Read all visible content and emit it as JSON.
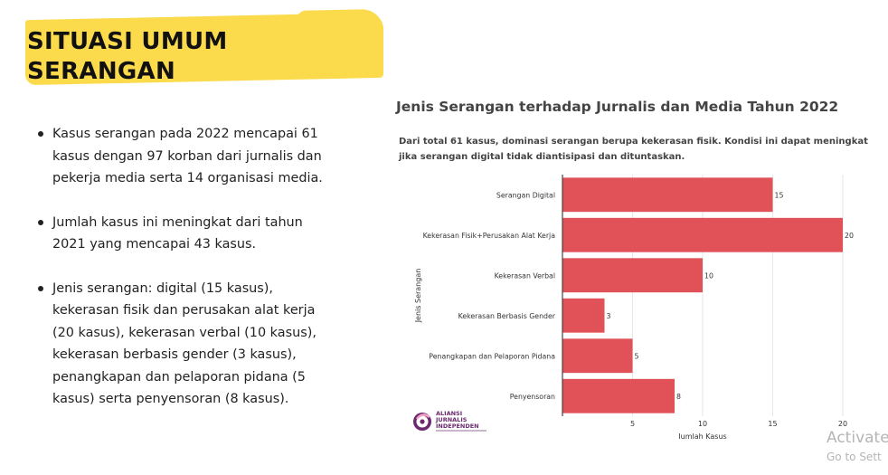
{
  "slide": {
    "title_line1": "SITUASI UMUM",
    "title_line2": "SERANGAN",
    "bullets": [
      "Kasus serangan pada 2022 mencapai 61 kasus dengan 97 korban dari jurnalis dan pekerja media serta 14 organisasi media.",
      "Jumlah kasus ini meningkat dari tahun 2021 yang mencapai 43 kasus.",
      "Jenis serangan: digital (15 kasus), kekerasan fisik dan perusakan alat kerja (20 kasus), kekerasan verbal (10 kasus), kekerasan berbasis gender (3 kasus), penangkapan dan pelaporan pidana (5 kasus) serta penyensoran (8 kasus)."
    ],
    "highlight_color": "#fbdb4c"
  },
  "chart_data": {
    "type": "bar",
    "orientation": "horizontal",
    "title": "Jenis Serangan terhadap Jurnalis dan Media Tahun 2022",
    "subtitle": "Dari total 61 kasus, dominasi serangan berupa kekerasan fisik. Kondisi ini dapat meningkat jika serangan digital tidak diantisipasi dan dituntaskan.",
    "categories": [
      "Serangan Digital",
      "Kekerasan Fisik+Perusakan Alat Kerja",
      "Kekerasan Verbal",
      "Kekerasan Berbasis Gender",
      "Penangkapan dan Pelaporan Pidana",
      "Penyensoran"
    ],
    "values": [
      15,
      20,
      10,
      3,
      5,
      8
    ],
    "xlabel": "Jumlah Kasus",
    "ylabel": "Jenis Serangan",
    "xlim": [
      0,
      20
    ],
    "xticks": [
      5,
      10,
      15,
      20
    ],
    "grid": true,
    "bar_color": "#e05257",
    "data_labels": true
  },
  "logo": {
    "name": "ajii-logo-icon",
    "text_lines": [
      "ALIANSI",
      "JURNALIS",
      "INDEPENDEN"
    ],
    "color": "#6a2a6e"
  },
  "watermark": {
    "line1": "Activate",
    "line2": "Go to Sett"
  }
}
